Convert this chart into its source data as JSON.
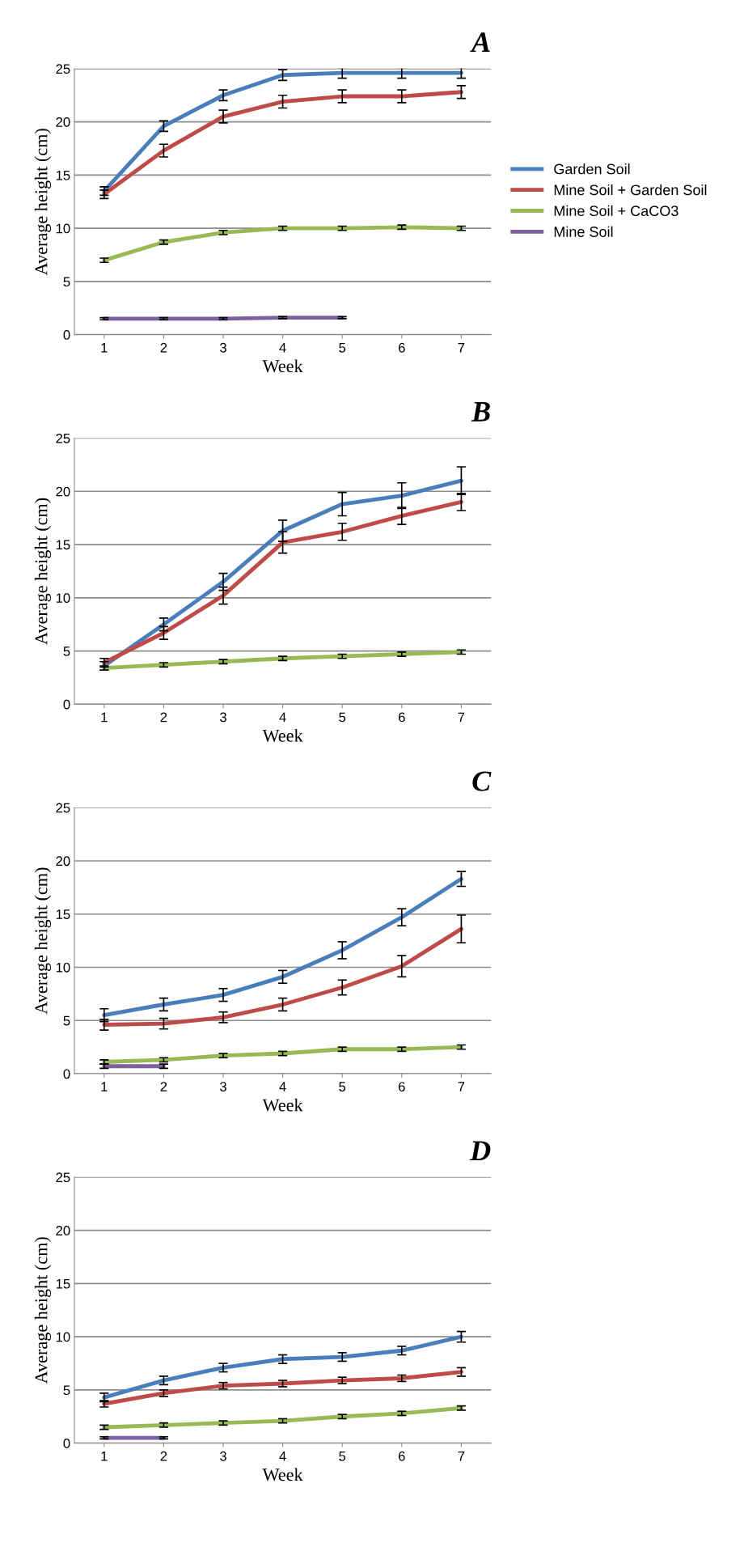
{
  "chart_data": [
    {
      "type": "line",
      "title": "A",
      "xlabel": "Week",
      "ylabel": "Average height (cm)",
      "categories": [
        "1",
        "2",
        "3",
        "4",
        "5",
        "6",
        "7"
      ],
      "ylim": [
        0,
        25
      ],
      "yticks": [
        0,
        5,
        10,
        15,
        20,
        25
      ],
      "grid": "y",
      "legend": "right",
      "marker": "none",
      "series": [
        {
          "name": "Garden Soil",
          "color": "#4a7ebb",
          "values": [
            13.5,
            19.6,
            22.5,
            24.4,
            24.6,
            24.6,
            24.6
          ],
          "errors": [
            0.4,
            0.5,
            0.5,
            0.5,
            0.5,
            0.5,
            0.5
          ]
        },
        {
          "name": "Mine Soil + Garden Soil",
          "color": "#be4b48",
          "values": [
            13.2,
            17.3,
            20.5,
            21.9,
            22.4,
            22.4,
            22.8
          ],
          "errors": [
            0.4,
            0.6,
            0.6,
            0.6,
            0.6,
            0.6,
            0.6
          ]
        },
        {
          "name": "Mine Soil + CaCO3",
          "color": "#98b954",
          "values": [
            7.0,
            8.7,
            9.6,
            10.0,
            10.0,
            10.1,
            10.0
          ],
          "errors": [
            0.2,
            0.2,
            0.2,
            0.2,
            0.2,
            0.2,
            0.2
          ]
        },
        {
          "name": "Mine Soil",
          "color": "#7d60a0",
          "values": [
            1.5,
            1.5,
            1.5,
            1.6,
            1.6,
            null,
            null
          ],
          "errors": [
            0.1,
            0.1,
            0.1,
            0.1,
            0.1,
            null,
            null
          ]
        }
      ]
    },
    {
      "type": "line",
      "title": "B",
      "xlabel": "Week",
      "ylabel": "Average height (cm)",
      "categories": [
        "1",
        "2",
        "3",
        "4",
        "5",
        "6",
        "7"
      ],
      "ylim": [
        0,
        25
      ],
      "yticks": [
        0,
        5,
        10,
        15,
        20,
        25
      ],
      "grid": "y",
      "marker": "none",
      "series": [
        {
          "color": "#4a7ebb",
          "values": [
            3.6,
            7.5,
            11.5,
            16.3,
            18.8,
            19.6,
            21.0
          ],
          "errors": [
            0.4,
            0.6,
            0.8,
            1.0,
            1.1,
            1.2,
            1.3
          ]
        },
        {
          "color": "#be4b48",
          "values": [
            3.9,
            6.7,
            10.2,
            15.2,
            16.2,
            17.7,
            19.0
          ],
          "errors": [
            0.4,
            0.6,
            0.8,
            1.0,
            0.8,
            0.8,
            0.8
          ]
        },
        {
          "color": "#98b954",
          "values": [
            3.4,
            3.7,
            4.0,
            4.3,
            4.5,
            4.7,
            4.9
          ],
          "errors": [
            0.2,
            0.2,
            0.2,
            0.2,
            0.2,
            0.2,
            0.2
          ]
        }
      ]
    },
    {
      "type": "line",
      "title": "C",
      "xlabel": "Week",
      "ylabel": "Average height (cm)",
      "categories": [
        "1",
        "2",
        "3",
        "4",
        "5",
        "6",
        "7"
      ],
      "ylim": [
        0,
        25
      ],
      "yticks": [
        0,
        5,
        10,
        15,
        20,
        25
      ],
      "grid": "y",
      "marker": "none",
      "series": [
        {
          "color": "#4a7ebb",
          "values": [
            5.5,
            6.5,
            7.4,
            9.1,
            11.6,
            14.7,
            18.3
          ],
          "errors": [
            0.6,
            0.6,
            0.6,
            0.6,
            0.8,
            0.8,
            0.7
          ]
        },
        {
          "color": "#be4b48",
          "values": [
            4.6,
            4.7,
            5.3,
            6.5,
            8.1,
            10.1,
            13.6
          ],
          "errors": [
            0.5,
            0.5,
            0.5,
            0.6,
            0.7,
            1.0,
            1.3
          ]
        },
        {
          "color": "#98b954",
          "values": [
            1.1,
            1.3,
            1.7,
            1.9,
            2.3,
            2.3,
            2.5
          ],
          "errors": [
            0.2,
            0.2,
            0.2,
            0.2,
            0.2,
            0.2,
            0.2
          ]
        },
        {
          "color": "#7d60a0",
          "values": [
            0.7,
            0.7,
            null,
            null,
            null,
            null,
            null
          ],
          "errors": [
            0.2,
            0.2,
            null,
            null,
            null,
            null,
            null
          ]
        }
      ]
    },
    {
      "type": "line",
      "title": "D",
      "xlabel": "Week",
      "ylabel": "Average height (cm)",
      "categories": [
        "1",
        "2",
        "3",
        "4",
        "5",
        "6",
        "7"
      ],
      "ylim": [
        0,
        25
      ],
      "yticks": [
        0,
        5,
        10,
        15,
        20,
        25
      ],
      "grid": "y",
      "marker": "none",
      "series": [
        {
          "color": "#4a7ebb",
          "values": [
            4.3,
            5.9,
            7.1,
            7.9,
            8.1,
            8.7,
            10.0
          ],
          "errors": [
            0.4,
            0.4,
            0.4,
            0.4,
            0.4,
            0.4,
            0.5
          ]
        },
        {
          "color": "#be4b48",
          "values": [
            3.7,
            4.7,
            5.4,
            5.6,
            5.9,
            6.1,
            6.7
          ],
          "errors": [
            0.3,
            0.3,
            0.3,
            0.3,
            0.3,
            0.3,
            0.4
          ]
        },
        {
          "color": "#98b954",
          "values": [
            1.5,
            1.7,
            1.9,
            2.1,
            2.5,
            2.8,
            3.3
          ],
          "errors": [
            0.2,
            0.2,
            0.2,
            0.2,
            0.2,
            0.2,
            0.2
          ]
        },
        {
          "color": "#7d60a0",
          "values": [
            0.5,
            0.5,
            null,
            null,
            null,
            null,
            null
          ],
          "errors": [
            0.1,
            0.1,
            null,
            null,
            null,
            null,
            null
          ]
        }
      ]
    }
  ]
}
